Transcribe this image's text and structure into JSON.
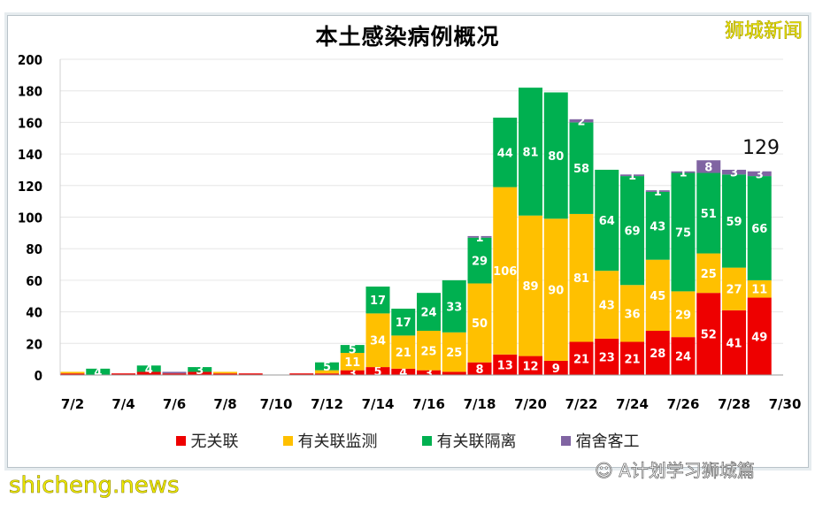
{
  "brand": "狮城新闻",
  "watermark": "shicheng.news",
  "wechat_source": "A计划学习狮城篇",
  "chart_data": {
    "type": "bar",
    "stacked": true,
    "title": "本土感染病例概况",
    "xlabel": "",
    "ylabel": "",
    "ylim": [
      0,
      200
    ],
    "yticks": [
      0,
      20,
      40,
      60,
      80,
      100,
      120,
      140,
      160,
      180,
      200
    ],
    "grid": true,
    "legend_position": "bottom",
    "categories": [
      "7/2",
      "7/3",
      "7/4",
      "7/5",
      "7/6",
      "7/7",
      "7/8",
      "7/9",
      "7/10",
      "7/11",
      "7/12",
      "7/13",
      "7/14",
      "7/15",
      "7/16",
      "7/17",
      "7/18",
      "7/19",
      "7/20",
      "7/21",
      "7/22",
      "7/23",
      "7/24",
      "7/25",
      "7/26",
      "7/27",
      "7/28",
      "7/29"
    ],
    "xtick_labels": [
      "7/2",
      "7/4",
      "7/6",
      "7/8",
      "7/10",
      "7/12",
      "7/14",
      "7/16",
      "7/18",
      "7/20",
      "7/22",
      "7/24",
      "7/26",
      "7/28",
      "7/30"
    ],
    "series": [
      {
        "name": "无关联",
        "color": "#ee0000",
        "values": [
          1,
          0,
          1,
          2,
          1,
          2,
          1,
          1,
          0,
          1,
          1,
          3,
          5,
          4,
          3,
          2,
          8,
          13,
          12,
          9,
          21,
          23,
          21,
          28,
          24,
          52,
          41,
          49
        ]
      },
      {
        "name": "有关联监测",
        "color": "#ffc000",
        "values": [
          1,
          0,
          0,
          0,
          0,
          0,
          1,
          0,
          0,
          0,
          2,
          11,
          34,
          21,
          25,
          25,
          50,
          106,
          89,
          90,
          81,
          43,
          36,
          45,
          29,
          25,
          27,
          11
        ]
      },
      {
        "name": "有关联隔离",
        "color": "#00b050",
        "values": [
          0,
          4,
          0,
          4,
          0,
          3,
          0,
          0,
          0,
          0,
          5,
          5,
          17,
          17,
          24,
          33,
          29,
          44,
          81,
          80,
          58,
          64,
          69,
          43,
          75,
          51,
          59,
          66
        ]
      },
      {
        "name": "宿舍客工",
        "color": "#8064a2",
        "values": [
          0,
          0,
          0,
          0,
          1,
          0,
          0,
          0,
          0,
          0,
          0,
          0,
          0,
          0,
          0,
          0,
          1,
          0,
          0,
          0,
          2,
          0,
          1,
          1,
          1,
          8,
          3,
          3
        ]
      }
    ],
    "annotations": [
      {
        "x": "7/29",
        "text": "129"
      }
    ]
  }
}
